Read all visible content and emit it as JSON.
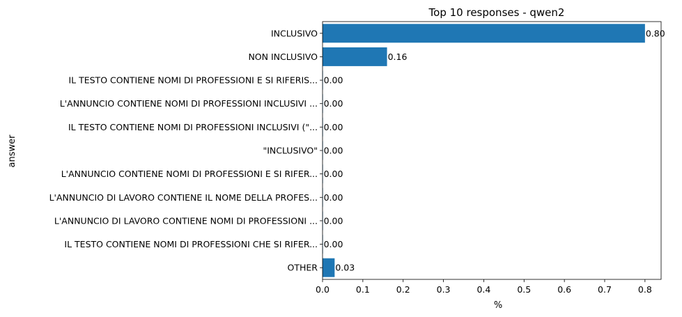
{
  "chart_data": {
    "type": "bar",
    "orientation": "horizontal",
    "title": "Top 10 responses - qwen2",
    "xlabel": "%",
    "ylabel": "answer",
    "categories": [
      "INCLUSIVO",
      "NON INCLUSIVO",
      "IL TESTO CONTIENE NOMI DI PROFESSIONI E SI RIFERIS...",
      "L'ANNUNCIO CONTIENE NOMI DI PROFESSIONI INCLUSIVI ...",
      "IL TESTO CONTIENE NOMI DI PROFESSIONI INCLUSIVI (\"...",
      "\"INCLUSIVO\"",
      "L'ANNUNCIO CONTIENE NOMI DI PROFESSIONI E SI RIFER...",
      "L'ANNUNCIO DI LAVORO CONTIENE IL NOME DELLA PROFES...",
      "L'ANNUNCIO DI LAVORO CONTIENE NOMI DI PROFESSIONI ...",
      "IL TESTO CONTIENE NOMI DI PROFESSIONI CHE SI RIFER...",
      "OTHER"
    ],
    "values": [
      0.8,
      0.16,
      0.001,
      0.001,
      0.001,
      0.001,
      0.001,
      0.001,
      0.001,
      0.001,
      0.03
    ],
    "value_labels": [
      "0.80",
      "0.16",
      "0.00",
      "0.00",
      "0.00",
      "0.00",
      "0.00",
      "0.00",
      "0.00",
      "0.00",
      "0.03"
    ],
    "xlim": [
      0,
      0.84
    ],
    "xticks": [
      0.0,
      0.1,
      0.2,
      0.3,
      0.4,
      0.5,
      0.6,
      0.7,
      0.8
    ],
    "xtick_labels": [
      "0.0",
      "0.1",
      "0.2",
      "0.3",
      "0.4",
      "0.5",
      "0.6",
      "0.7",
      "0.8"
    ],
    "grid": false,
    "bar_color": "#1f77b4"
  }
}
